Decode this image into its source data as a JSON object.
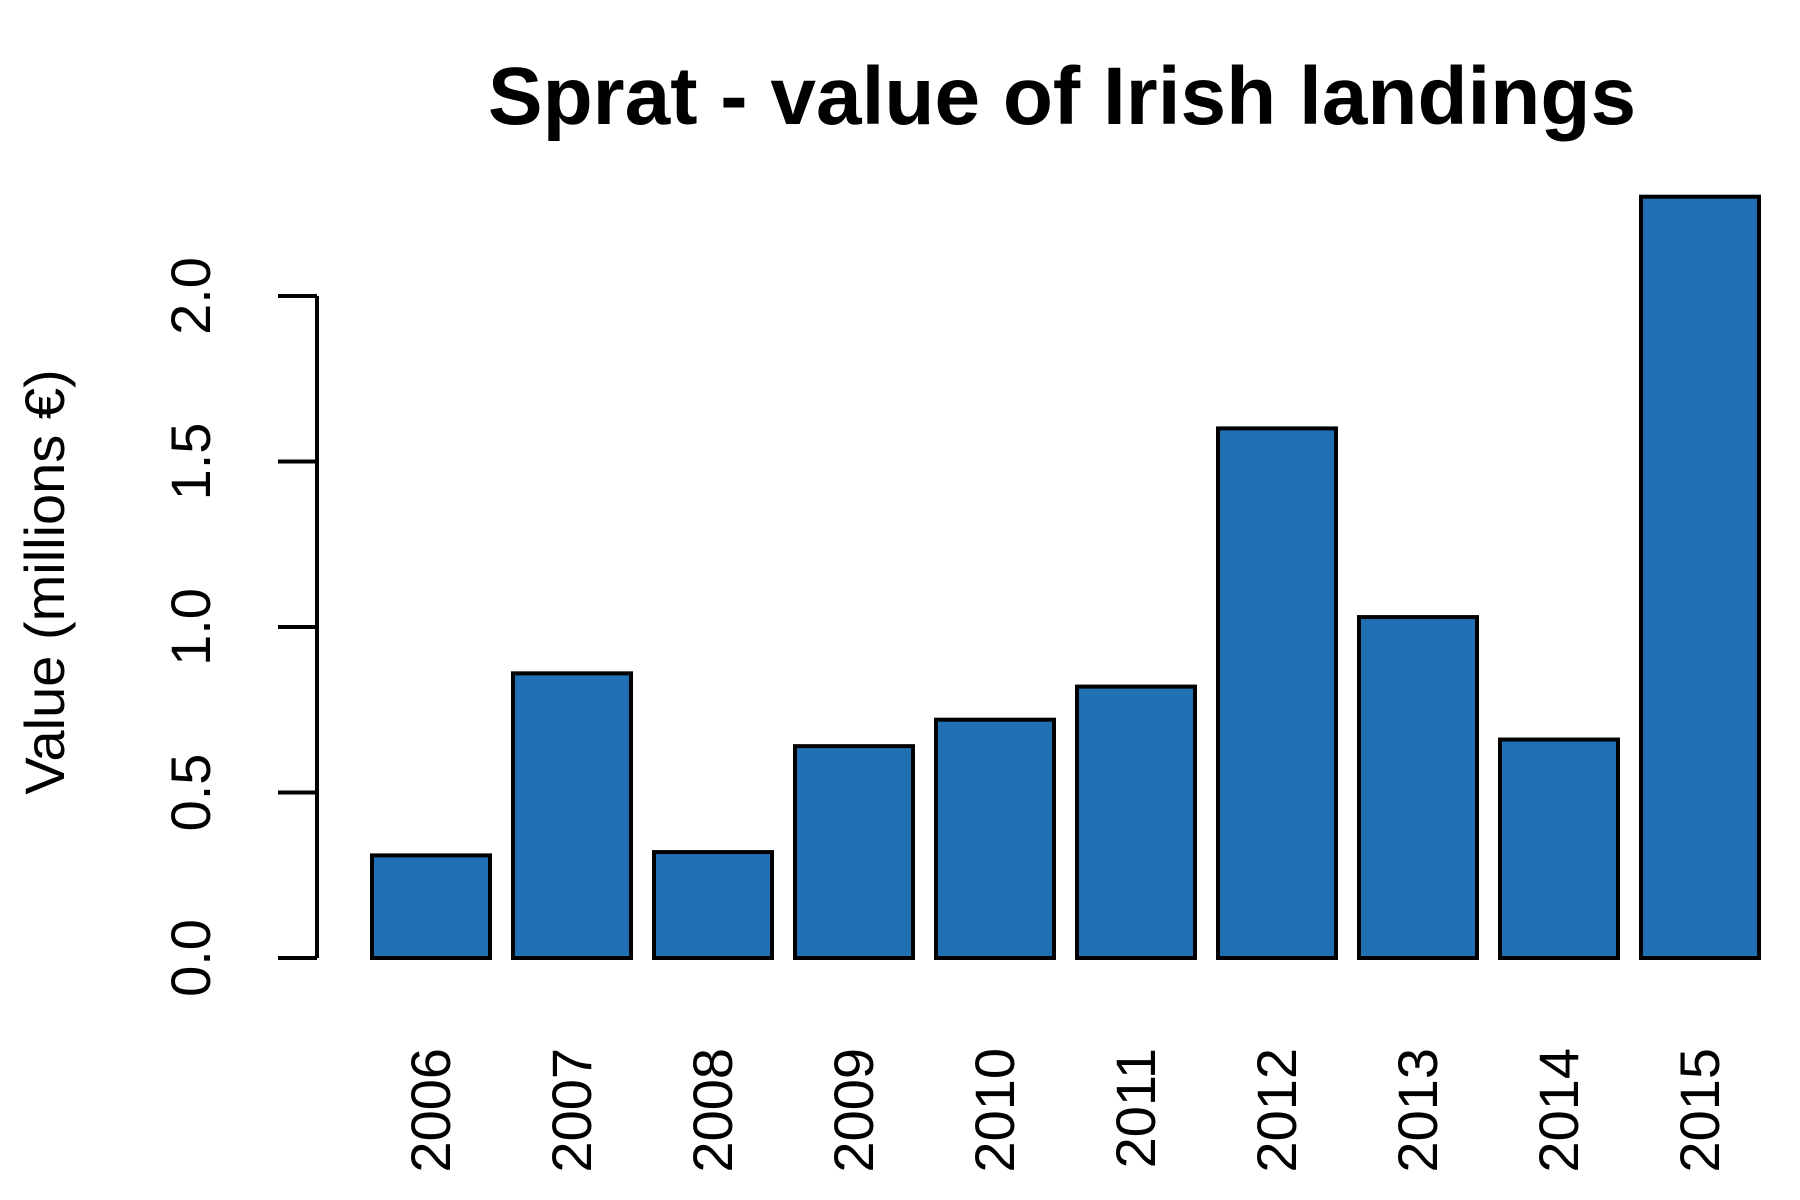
{
  "chart_data": {
    "type": "bar",
    "title": "Sprat - value of Irish landings",
    "xlabel": "",
    "ylabel": "Value (millions €)",
    "categories": [
      "2006",
      "2007",
      "2008",
      "2009",
      "2010",
      "2011",
      "2012",
      "2013",
      "2014",
      "2015"
    ],
    "values": [
      0.31,
      0.86,
      0.32,
      0.64,
      0.72,
      0.82,
      1.6,
      1.03,
      0.66,
      2.3
    ],
    "ylim": [
      0,
      2.3
    ],
    "yticks": [
      0.0,
      0.5,
      1.0,
      1.5,
      2.0
    ],
    "ytick_labels": [
      "0.0",
      "0.5",
      "1.0",
      "1.5",
      "2.0"
    ],
    "bar_color": "#2270b4",
    "bar_edge_color": "#000000",
    "grid": false,
    "legend": "none"
  }
}
